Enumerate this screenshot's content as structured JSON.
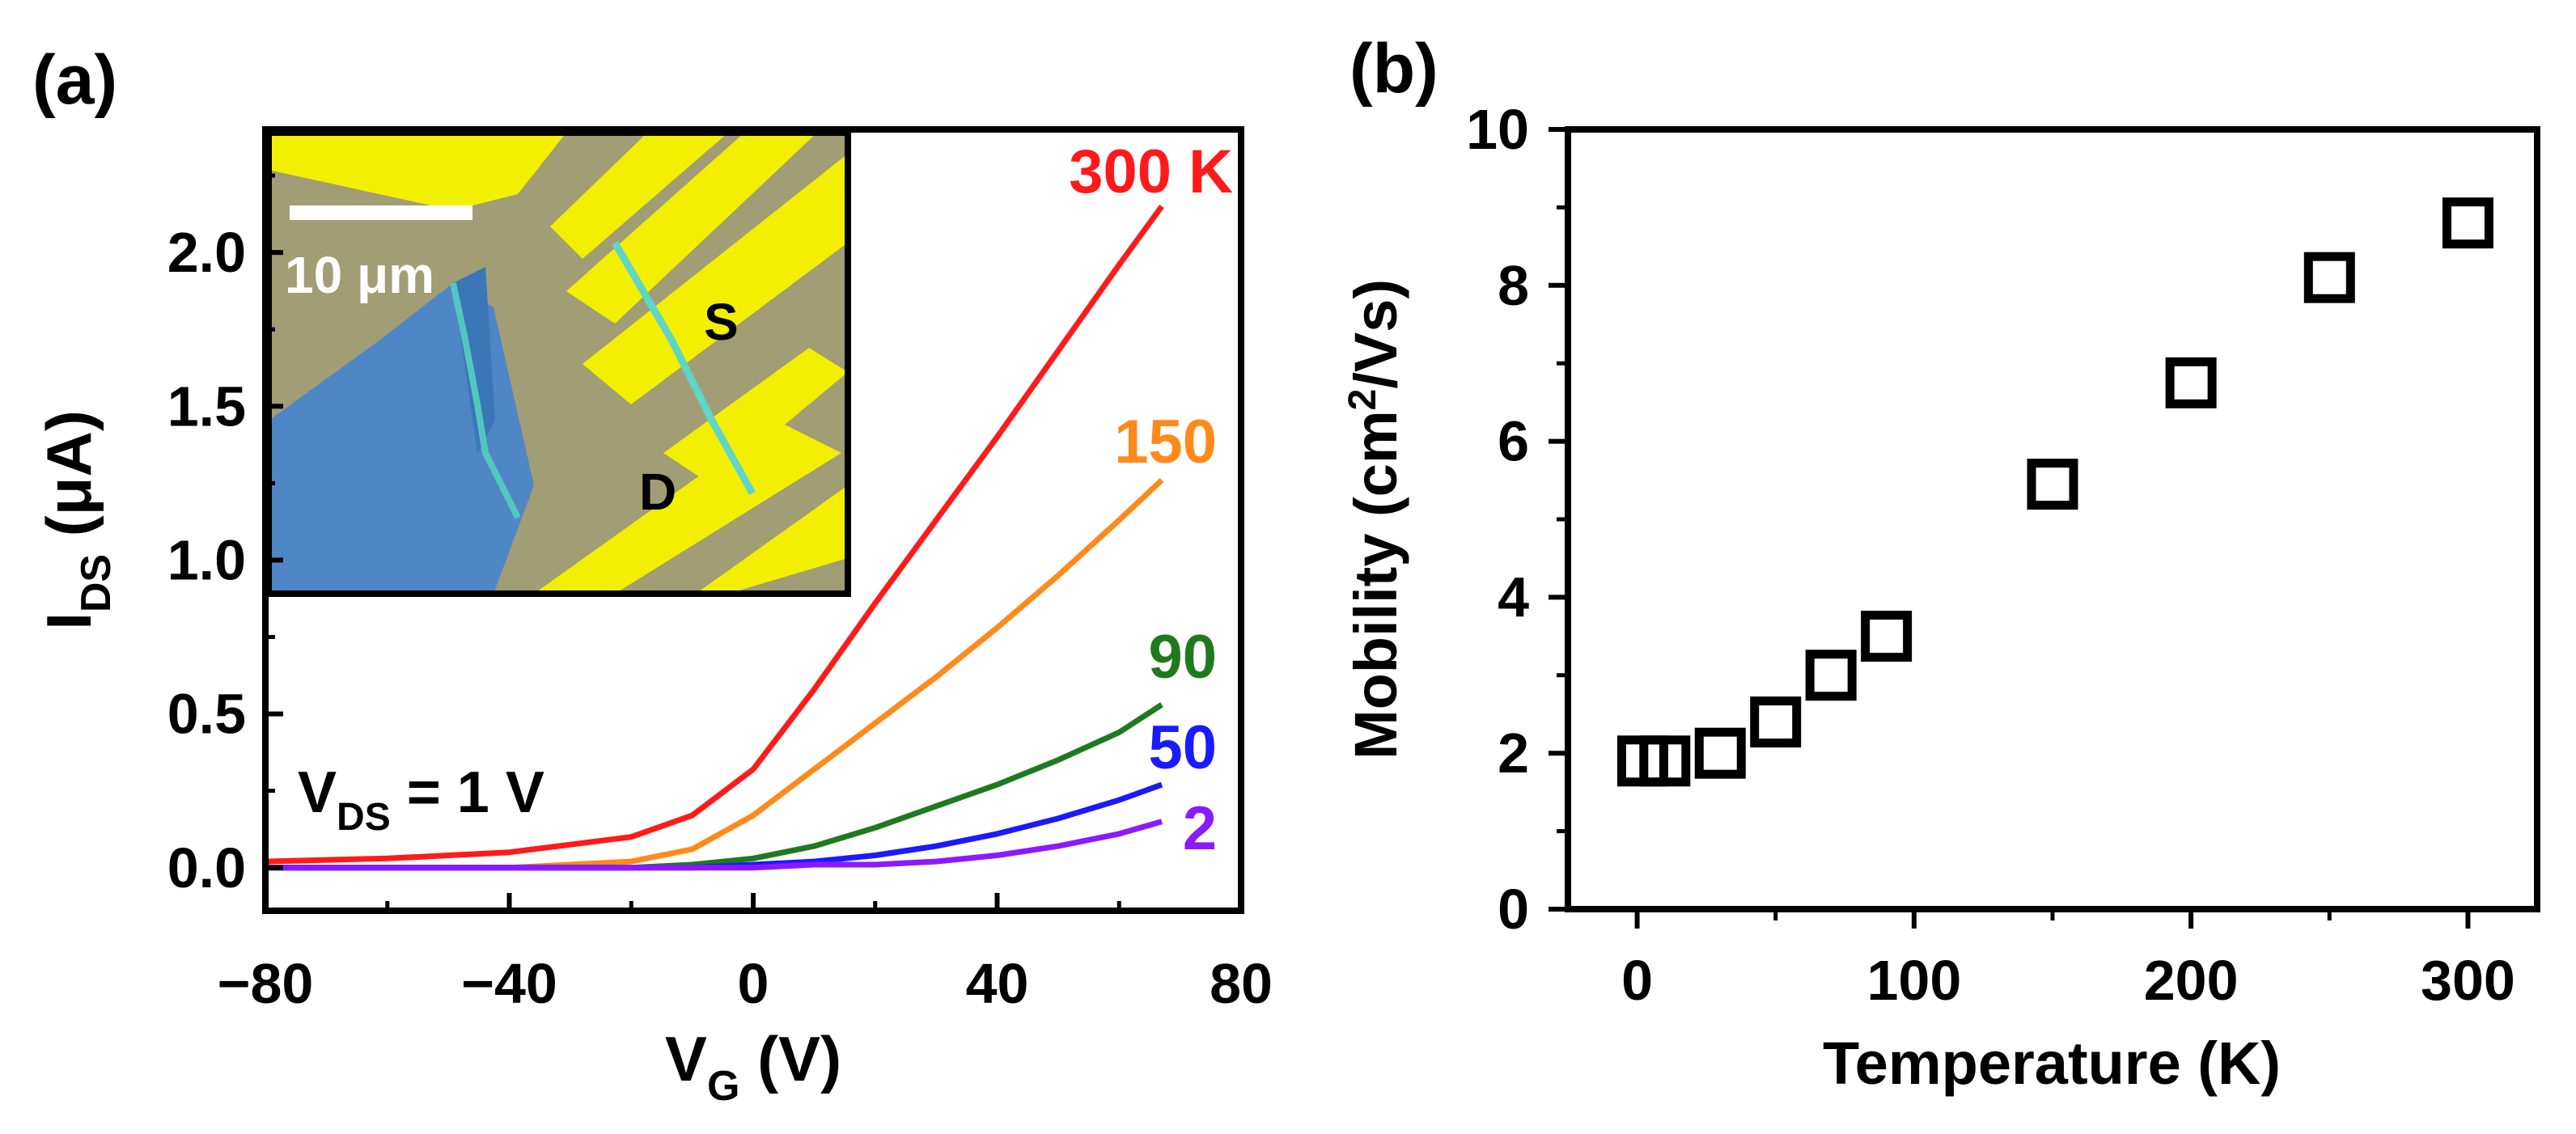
{
  "panel_a": {
    "label": "(a)",
    "xlabel_main": "V",
    "xlabel_sub": "G",
    "xlabel_unit": " (V)",
    "ylabel_main": "I",
    "ylabel_sub": "DS",
    "ylabel_unit": " (μA)",
    "annotation_main": "V",
    "annotation_sub": "DS",
    "annotation_rest": " = 1 V",
    "inset": {
      "scale_bar": "10 μm",
      "label_source": "S",
      "label_drain": "D"
    }
  },
  "panel_b": {
    "label": "(b)",
    "xlabel": "Temperature (K)",
    "ylabel_pre": "Mobility (cm",
    "ylabel_sup": "2",
    "ylabel_post": "/Vs)"
  },
  "chart_data": [
    {
      "type": "line",
      "title": "",
      "xlabel": "VG (V)",
      "ylabel": "IDS (μA)",
      "xlim": [
        -80,
        80
      ],
      "ylim": [
        -0.14,
        2.4
      ],
      "xticks": [
        -80,
        -40,
        0,
        40,
        80
      ],
      "xtick_labels": [
        "−80",
        "−40",
        "0",
        "40",
        "80"
      ],
      "yticks": [
        0.0,
        0.5,
        1.0,
        1.5,
        2.0
      ],
      "ytick_labels": [
        "0.0",
        "0.5",
        "1.0",
        "1.5",
        "2.0"
      ],
      "grid": false,
      "series": [
        {
          "name": "300 K",
          "color": "#ff1a1a",
          "x": [
            -80,
            -60,
            -40,
            -20,
            -10,
            0,
            10,
            20,
            30,
            40,
            50,
            60,
            67
          ],
          "y": [
            0.02,
            0.03,
            0.05,
            0.1,
            0.17,
            0.32,
            0.58,
            0.86,
            1.13,
            1.4,
            1.68,
            1.96,
            2.15
          ]
        },
        {
          "name": "150",
          "color": "#ff8a1a",
          "x": [
            -80,
            -40,
            -20,
            -10,
            0,
            10,
            20,
            30,
            40,
            50,
            60,
            67
          ],
          "y": [
            0.0,
            0.0,
            0.02,
            0.06,
            0.17,
            0.32,
            0.47,
            0.62,
            0.78,
            0.95,
            1.13,
            1.26
          ]
        },
        {
          "name": "90",
          "color": "#1f7a1f",
          "x": [
            -80,
            -20,
            -10,
            0,
            10,
            20,
            30,
            40,
            50,
            60,
            67
          ],
          "y": [
            0.0,
            0.0,
            0.01,
            0.03,
            0.07,
            0.13,
            0.2,
            0.27,
            0.35,
            0.44,
            0.53
          ]
        },
        {
          "name": "50",
          "color": "#1a1aff",
          "x": [
            -80,
            -10,
            0,
            10,
            20,
            30,
            40,
            50,
            60,
            67
          ],
          "y": [
            0.0,
            0.0,
            0.01,
            0.02,
            0.04,
            0.07,
            0.11,
            0.16,
            0.22,
            0.27
          ]
        },
        {
          "name": "2",
          "color": "#8b1aff",
          "x": [
            -80,
            0,
            10,
            20,
            30,
            40,
            50,
            60,
            67
          ],
          "y": [
            0.0,
            0.0,
            0.01,
            0.01,
            0.02,
            0.04,
            0.07,
            0.11,
            0.15
          ]
        }
      ]
    },
    {
      "type": "scatter",
      "title": "",
      "xlabel": "Temperature (K)",
      "ylabel": "Mobility (cm2/Vs)",
      "xlim": [
        -25,
        325
      ],
      "ylim": [
        0,
        10
      ],
      "xticks": [
        0,
        100,
        200,
        300
      ],
      "xtick_labels": [
        "0",
        "100",
        "200",
        "300"
      ],
      "yticks": [
        0,
        2,
        4,
        6,
        8,
        10
      ],
      "ytick_labels": [
        "0",
        "2",
        "4",
        "6",
        "8",
        "10"
      ],
      "grid": false,
      "marker": "open-square",
      "x": [
        2,
        10,
        30,
        50,
        70,
        90,
        150,
        200,
        250,
        300
      ],
      "y": [
        1.9,
        1.9,
        2.0,
        2.4,
        3.0,
        3.5,
        5.45,
        6.75,
        8.1,
        8.8
      ]
    }
  ]
}
